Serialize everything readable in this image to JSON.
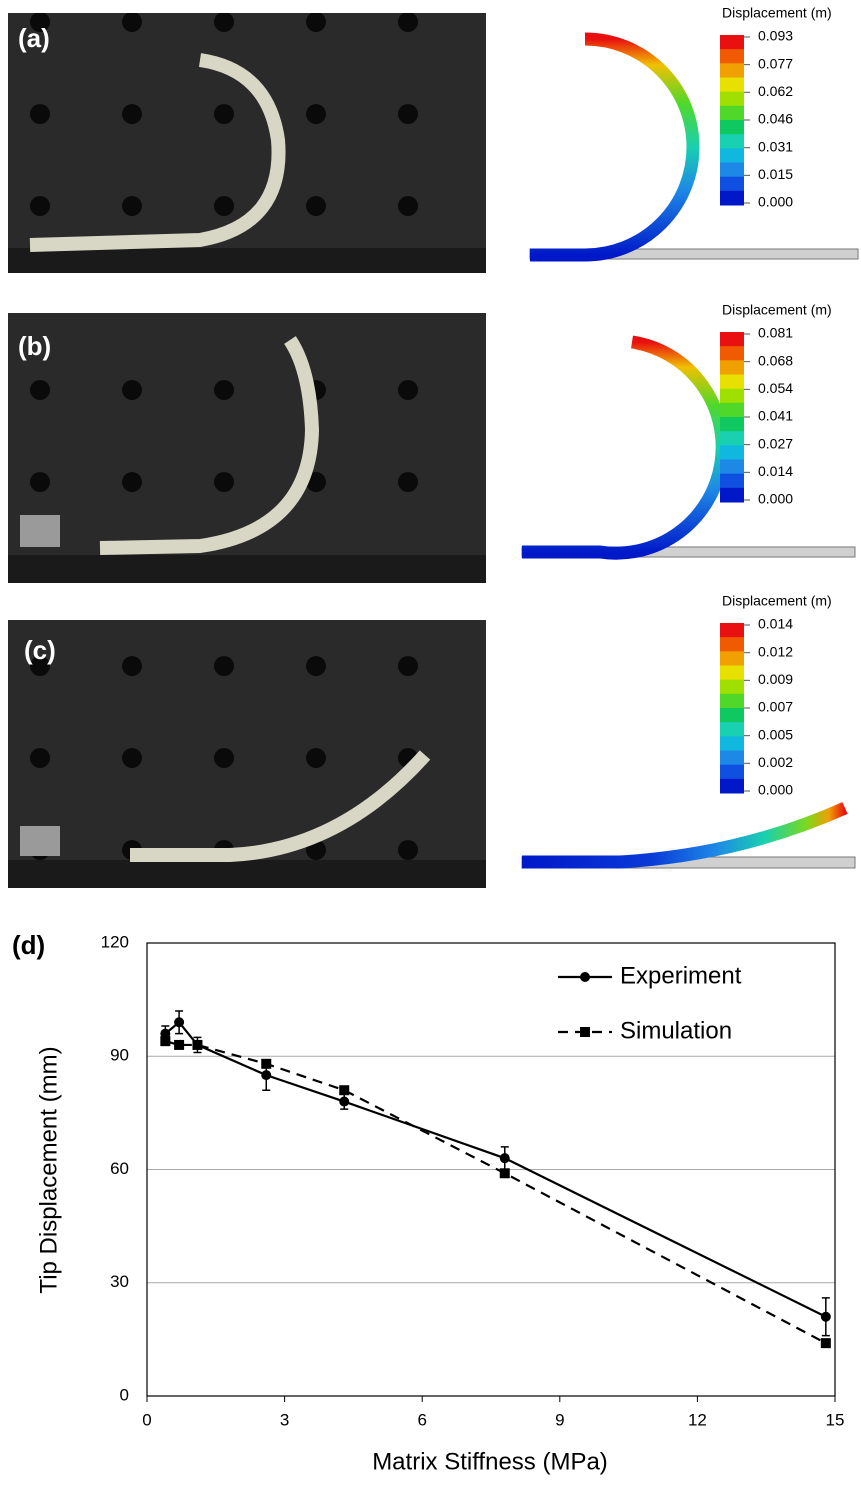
{
  "panels": [
    {
      "label": "(a)",
      "legend_title": "Displacement (m)",
      "scale": [
        "0.093",
        "0.077",
        "0.062",
        "0.046",
        "0.031",
        "0.015",
        "0.000"
      ]
    },
    {
      "label": "(b)",
      "legend_title": "Displacement (m)",
      "scale": [
        "0.081",
        "0.068",
        "0.054",
        "0.041",
        "0.027",
        "0.014",
        "0.000"
      ]
    },
    {
      "label": "(c)",
      "legend_title": "Displacement (m)",
      "scale": [
        "0.014",
        "0.012",
        "0.009",
        "0.007",
        "0.005",
        "0.002",
        "0.000"
      ]
    }
  ],
  "chart_data": {
    "type": "line",
    "panel_label": "(d)",
    "x_label": "Matrix Stiffness (MPa)",
    "y_label": "Tip Displacement (mm)",
    "x": [
      0.4,
      0.7,
      1.1,
      2.6,
      4.3,
      7.8,
      14.8
    ],
    "series": [
      {
        "name": "Experiment",
        "color": "#000000",
        "marker": "circle",
        "dash": false,
        "values": [
          96,
          99,
          93,
          85,
          78,
          63,
          21
        ],
        "errors": [
          2,
          3,
          2,
          4,
          2,
          3,
          5
        ]
      },
      {
        "name": "Simulation",
        "color": "#000000",
        "marker": "square",
        "dash": true,
        "values": [
          94,
          93,
          93,
          88,
          81,
          59,
          14
        ]
      }
    ],
    "xlim": [
      0,
      15
    ],
    "ylim": [
      0,
      120
    ],
    "xticks": [
      0,
      3,
      6,
      9,
      12,
      15
    ],
    "yticks": [
      0,
      30,
      60,
      90,
      120
    ],
    "grid": true
  }
}
